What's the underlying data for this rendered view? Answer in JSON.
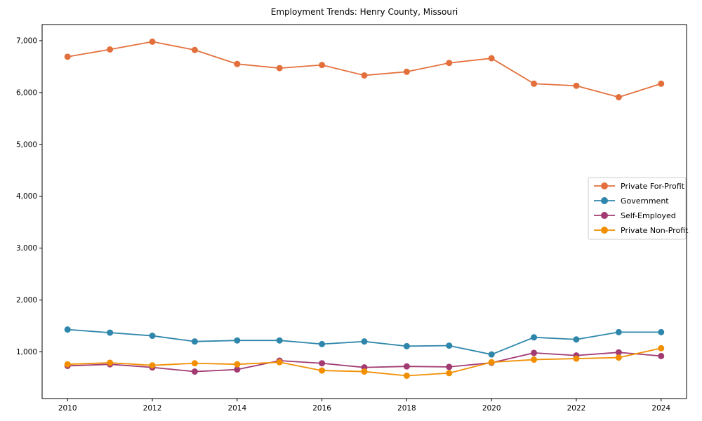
{
  "chart_data": {
    "type": "line",
    "title": "Employment Trends: Henry County, Missouri",
    "xlabel": "",
    "ylabel": "",
    "x": [
      2010,
      2011,
      2012,
      2013,
      2014,
      2015,
      2016,
      2017,
      2018,
      2019,
      2020,
      2021,
      2022,
      2023,
      2024
    ],
    "x_ticks": [
      2010,
      2012,
      2014,
      2016,
      2018,
      2020,
      2022,
      2024
    ],
    "x_tick_labels": [
      "2010",
      "2012",
      "2014",
      "2016",
      "2018",
      "2020",
      "2022",
      "2024"
    ],
    "y_ticks": [
      1000,
      2000,
      3000,
      4000,
      5000,
      6000,
      7000
    ],
    "y_tick_labels": [
      "1,000",
      "2,000",
      "3,000",
      "4,000",
      "5,000",
      "6,000",
      "7,000"
    ],
    "xlim": [
      2009.4,
      2024.6
    ],
    "ylim": [
      100,
      7310
    ],
    "grid": false,
    "legend_position": "center-right",
    "series": [
      {
        "name": "Private For-Profit",
        "color": "#e3703c",
        "values": [
          6690,
          6830,
          6980,
          6820,
          6550,
          6470,
          6530,
          6330,
          6400,
          6570,
          6660,
          6170,
          6130,
          5910,
          6170
        ]
      },
      {
        "name": "Government",
        "color": "#2e86ab",
        "values": [
          1430,
          1370,
          1310,
          1200,
          1220,
          1220,
          1150,
          1200,
          1110,
          1120,
          950,
          1280,
          1240,
          1380,
          1380
        ]
      },
      {
        "name": "Self-Employed",
        "color": "#a23b72",
        "values": [
          730,
          760,
          700,
          620,
          660,
          830,
          780,
          700,
          720,
          710,
          790,
          980,
          930,
          990,
          920
        ]
      },
      {
        "name": "Private Non-Profit",
        "color": "#f18f01",
        "values": [
          760,
          790,
          740,
          780,
          760,
          800,
          640,
          620,
          540,
          590,
          800,
          850,
          870,
          890,
          1070
        ]
      }
    ]
  }
}
